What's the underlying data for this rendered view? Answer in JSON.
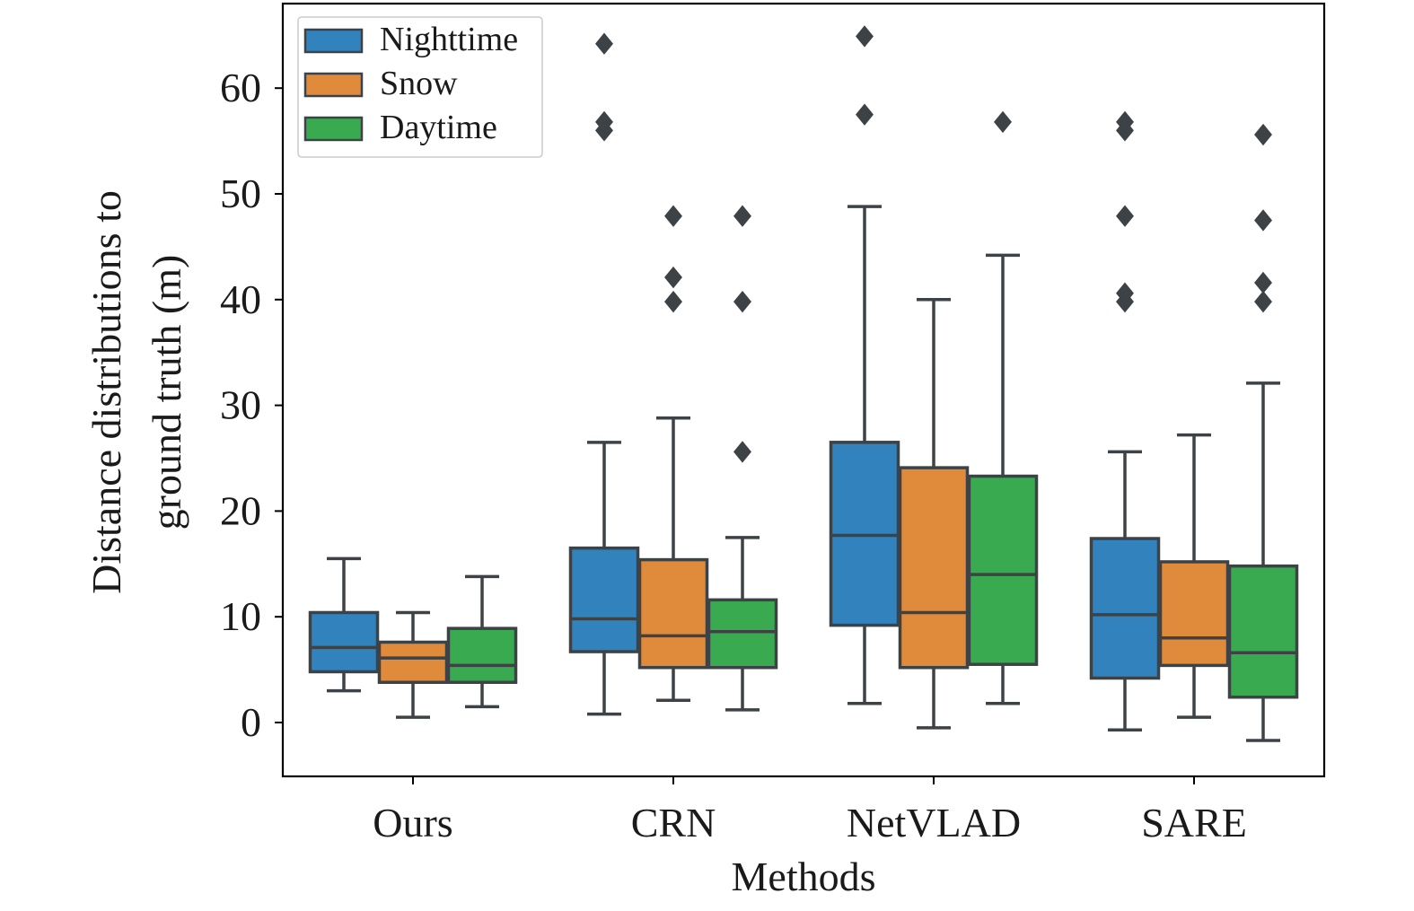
{
  "chart_data": {
    "type": "boxplot",
    "xlabel": "Methods",
    "ylabel_lines": [
      "Distance distributions to",
      "ground truth (m)"
    ],
    "categories": [
      "Ours",
      "CRN",
      "NetVLAD",
      "SARE"
    ],
    "yticks": [
      0,
      10,
      20,
      30,
      40,
      50,
      60
    ],
    "ylim": [
      -5.3,
      67
    ],
    "grid": false,
    "legend_position": "top-left",
    "series": [
      {
        "name": "Nighttime",
        "color": "#3182bd",
        "boxes": [
          {
            "whisker_low": 3.0,
            "q1": 4.8,
            "median": 7.1,
            "q3": 10.4,
            "whisker_high": 15.5,
            "outliers": []
          },
          {
            "whisker_low": 0.8,
            "q1": 6.7,
            "median": 9.8,
            "q3": 16.5,
            "whisker_high": 26.5,
            "outliers": [
              56.0,
              56.8,
              64.2
            ]
          },
          {
            "whisker_low": 1.8,
            "q1": 9.2,
            "median": 17.7,
            "q3": 26.5,
            "whisker_high": 48.8,
            "outliers": [
              57.5,
              64.9
            ]
          },
          {
            "whisker_low": -0.7,
            "q1": 4.2,
            "median": 10.2,
            "q3": 17.4,
            "whisker_high": 25.6,
            "outliers": [
              39.8,
              40.6,
              47.9,
              56.0,
              56.8
            ]
          }
        ]
      },
      {
        "name": "Snow",
        "color": "#e08a3c",
        "boxes": [
          {
            "whisker_low": 0.5,
            "q1": 3.8,
            "median": 6.1,
            "q3": 7.6,
            "whisker_high": 10.4,
            "outliers": []
          },
          {
            "whisker_low": 2.1,
            "q1": 5.2,
            "median": 8.2,
            "q3": 15.4,
            "whisker_high": 28.8,
            "outliers": [
              39.8,
              42.1,
              47.9
            ]
          },
          {
            "whisker_low": -0.5,
            "q1": 5.2,
            "median": 10.4,
            "q3": 24.1,
            "whisker_high": 40.0,
            "outliers": []
          },
          {
            "whisker_low": 0.5,
            "q1": 5.4,
            "median": 8.0,
            "q3": 15.2,
            "whisker_high": 27.2,
            "outliers": []
          }
        ]
      },
      {
        "name": "Daytime",
        "color": "#3aaa50",
        "boxes": [
          {
            "whisker_low": 1.5,
            "q1": 3.8,
            "median": 5.4,
            "q3": 8.9,
            "whisker_high": 13.8,
            "outliers": []
          },
          {
            "whisker_low": 1.2,
            "q1": 5.2,
            "median": 8.6,
            "q3": 11.6,
            "whisker_high": 17.5,
            "outliers": [
              25.6,
              39.8,
              47.9
            ]
          },
          {
            "whisker_low": 1.8,
            "q1": 5.5,
            "median": 14.0,
            "q3": 23.3,
            "whisker_high": 44.2,
            "outliers": [
              56.8
            ]
          },
          {
            "whisker_low": -1.7,
            "q1": 2.4,
            "median": 6.6,
            "q3": 14.8,
            "whisker_high": 32.1,
            "outliers": [
              39.8,
              41.6,
              47.5,
              55.6
            ]
          }
        ]
      }
    ]
  }
}
